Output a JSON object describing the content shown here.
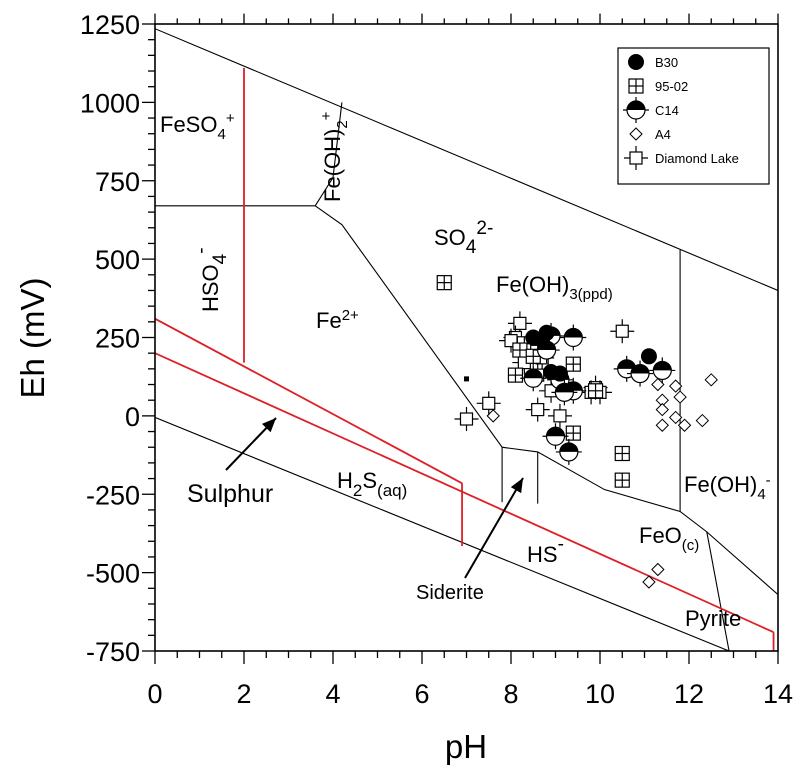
{
  "chart_data": {
    "type": "scatter",
    "xlabel": "pH",
    "ylabel": "Eh (mV)",
    "xlim": [
      0,
      14
    ],
    "ylim": [
      -750,
      1250
    ],
    "x_ticks": [
      "0",
      "2",
      "4",
      "6",
      "8",
      "10",
      "12",
      "14"
    ],
    "y_ticks": [
      "1250",
      "1000",
      "750",
      "500",
      "250",
      "0",
      "-250",
      "-500",
      "-750"
    ],
    "grid": false,
    "legend_position": "top-right",
    "colors": {
      "boundary": "#000000",
      "sulphur_boundary": "#dd1f26"
    },
    "legend": [
      {
        "name": "B30",
        "marker": "filled-circle"
      },
      {
        "name": "95-02",
        "marker": "boxed-cross"
      },
      {
        "name": "C14",
        "marker": "half-filled-circle"
      },
      {
        "name": "A4",
        "marker": "diamond"
      },
      {
        "name": "Diamond Lake",
        "marker": "square-cross"
      }
    ],
    "regions": [
      {
        "main": "FeSO",
        "sub": "4",
        "sup": "+"
      },
      {
        "main": "Fe(OH)",
        "sub": "2",
        "sup": "+"
      },
      {
        "main": "HSO",
        "sub": "4",
        "sup": "-"
      },
      {
        "main": "SO",
        "sub": "4",
        "sup": "2-"
      },
      {
        "main": "Fe",
        "sub": "",
        "sup": "2+"
      },
      {
        "main": "Fe(OH)",
        "sub": "3(ppd)",
        "sup": ""
      },
      {
        "main": "H",
        "sub": "2",
        "rest": "S",
        "sub2": "(aq)"
      },
      {
        "main": "HS",
        "sub": "",
        "sup": "-"
      },
      {
        "main": "FeO",
        "sub": "(c)",
        "sup": ""
      },
      {
        "main": "Fe(OH)",
        "sub": "4",
        "sup": "-"
      },
      {
        "main": "Pyrite",
        "sub": "",
        "sup": ""
      }
    ],
    "annotations": [
      "Sulphur",
      "Siderite"
    ],
    "series": [
      {
        "name": "B30",
        "points": [
          [
            8.5,
            250
          ],
          [
            8.8,
            265
          ],
          [
            8.7,
            245
          ],
          [
            11.1,
            190
          ],
          [
            9.1,
            135
          ],
          [
            8.9,
            140
          ]
        ]
      },
      {
        "name": "95-02",
        "points": [
          [
            6.5,
            425
          ],
          [
            8.3,
            230
          ],
          [
            9.4,
            165
          ],
          [
            9.4,
            -55
          ],
          [
            10.5,
            -120
          ],
          [
            10.5,
            -205
          ],
          [
            8.2,
            210
          ],
          [
            8.6,
            225
          ],
          [
            8.1,
            130
          ],
          [
            9.9,
            80
          ],
          [
            8.5,
            190
          ]
        ]
      },
      {
        "name": "C14",
        "points": [
          [
            8.9,
            255
          ],
          [
            9.4,
            250
          ],
          [
            8.8,
            210
          ],
          [
            8.5,
            120
          ],
          [
            9.1,
            115
          ],
          [
            9.4,
            80
          ],
          [
            9.2,
            75
          ],
          [
            10.6,
            150
          ],
          [
            10.9,
            135
          ],
          [
            11.4,
            145
          ],
          [
            9.0,
            -65
          ],
          [
            9.3,
            -115
          ]
        ]
      },
      {
        "name": "A4",
        "points": [
          [
            7.6,
            0
          ],
          [
            11.3,
            100
          ],
          [
            11.4,
            50
          ],
          [
            11.7,
            95
          ],
          [
            11.4,
            20
          ],
          [
            11.8,
            60
          ],
          [
            11.7,
            -5
          ],
          [
            11.4,
            -30
          ],
          [
            11.9,
            -30
          ],
          [
            12.3,
            -15
          ],
          [
            12.5,
            115
          ],
          [
            11.3,
            -490
          ],
          [
            11.1,
            -530
          ]
        ]
      },
      {
        "name": "Diamond Lake",
        "points": [
          [
            7.0,
            -10
          ],
          [
            7.5,
            40
          ],
          [
            8.2,
            295
          ],
          [
            8.1,
            250
          ],
          [
            8.3,
            170
          ],
          [
            8.5,
            200
          ],
          [
            8.7,
            185
          ],
          [
            8.6,
            130
          ],
          [
            8.9,
            80
          ],
          [
            9.1,
            0
          ],
          [
            8.6,
            20
          ],
          [
            9.9,
            90
          ],
          [
            9.8,
            75
          ],
          [
            10.0,
            75
          ],
          [
            10.5,
            270
          ],
          [
            8.0,
            240
          ]
        ]
      }
    ]
  }
}
